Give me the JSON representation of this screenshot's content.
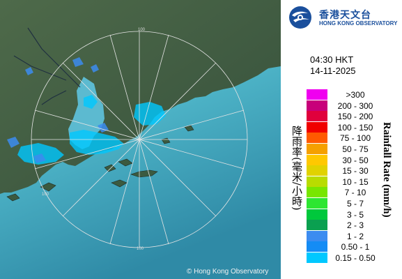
{
  "logo": {
    "chinese_name": "香港天文台",
    "english_name": "HONG KONG OBSERVATORY",
    "emblem": "hko-emblem-icon"
  },
  "radar": {
    "time": "04:30 HKT",
    "date": "14-11-2025",
    "copyright": "© Hong Kong Observatory",
    "range_rings": [
      {
        "label": "100"
      },
      {
        "label": "100"
      },
      {
        "label": "100"
      }
    ]
  },
  "legend": {
    "title_zh": "降雨率(毫米/小時)",
    "title_en": "Rainfall Rate (mm/h)",
    "items": [
      {
        "label": ">300",
        "color": "#f000f0"
      },
      {
        "label": "200 - 300",
        "color": "#c8007a"
      },
      {
        "label": "150 - 200",
        "color": "#e0003c"
      },
      {
        "label": "100 - 150",
        "color": "#f00000"
      },
      {
        "label": "75 - 100",
        "color": "#ff5a00"
      },
      {
        "label": "50 - 75",
        "color": "#f5a000"
      },
      {
        "label": "30 - 50",
        "color": "#ffc800"
      },
      {
        "label": "15 - 30",
        "color": "#e1d200"
      },
      {
        "label": "10 - 15",
        "color": "#b9dc00"
      },
      {
        "label": "7 - 10",
        "color": "#78e600"
      },
      {
        "label": "5 - 7",
        "color": "#2de632"
      },
      {
        "label": "3 - 5",
        "color": "#00c83c"
      },
      {
        "label": "2 - 3",
        "color": "#0aa050"
      },
      {
        "label": "1 - 2",
        "color": "#3c8cf0"
      },
      {
        "label": "0.50 - 1",
        "color": "#148cf5"
      },
      {
        "label": "0.15 - 0.50",
        "color": "#00c8ff"
      }
    ]
  }
}
